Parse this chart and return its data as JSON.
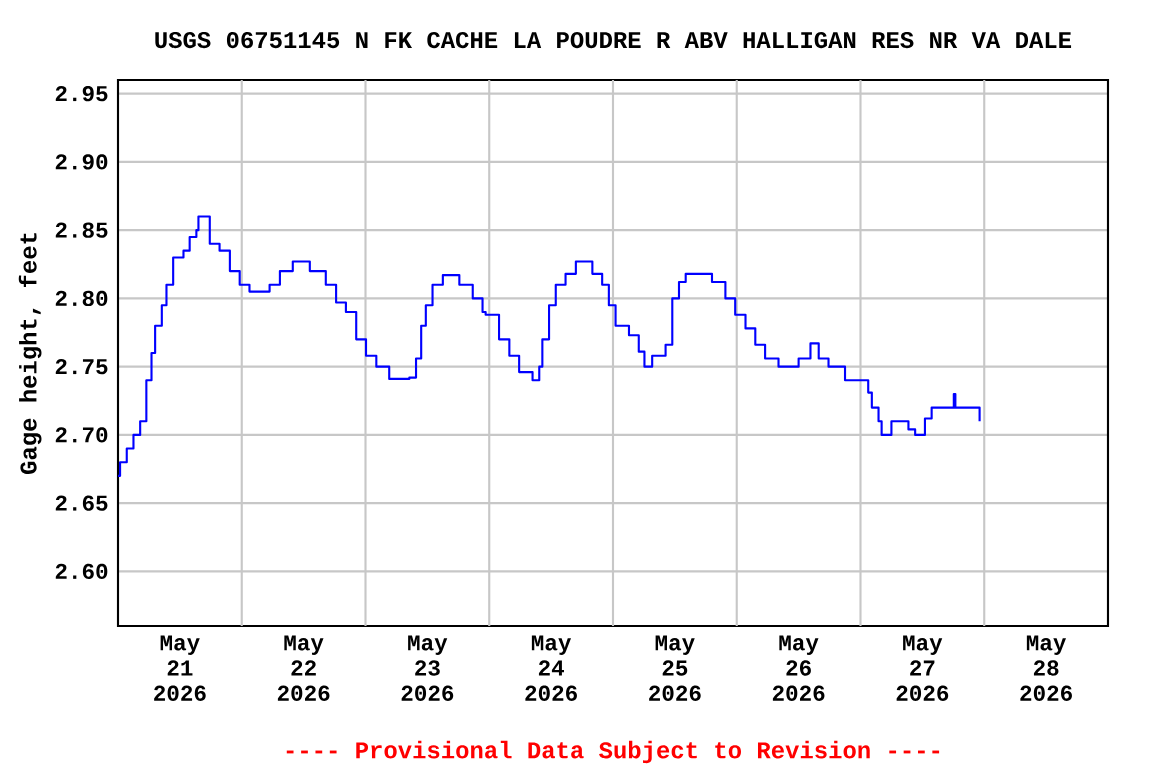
{
  "chart_data": {
    "type": "step",
    "title": "USGS 06751145 N FK CACHE LA POUDRE R ABV HALLIGAN RES NR VA DALE",
    "ylabel": "Gage height, feet",
    "annotations": [
      "---- Provisional Data Subject to Revision ----"
    ],
    "xlim": [
      "2026-05-21T00:00",
      "2026-05-29T00:00"
    ],
    "xticks": [
      {
        "value": "2026-05-21T12:00",
        "label": "May 21 2026"
      },
      {
        "value": "2026-05-22T12:00",
        "label": "May 22 2026"
      },
      {
        "value": "2026-05-23T12:00",
        "label": "May 23 2026"
      },
      {
        "value": "2026-05-24T12:00",
        "label": "May 24 2026"
      },
      {
        "value": "2026-05-25T12:00",
        "label": "May 25 2026"
      },
      {
        "value": "2026-05-26T12:00",
        "label": "May 26 2026"
      },
      {
        "value": "2026-05-27T12:00",
        "label": "May 27 2026"
      },
      {
        "value": "2026-05-28T12:00",
        "label": "May 28 2026"
      },
      {
        "value": "2026-05-22T00:00",
        "label": null
      },
      {
        "value": "2026-05-23T00:00",
        "label": null
      },
      {
        "value": "2026-05-24T00:00",
        "label": null
      },
      {
        "value": "2026-05-25T00:00",
        "label": null
      },
      {
        "value": "2026-05-26T00:00",
        "label": null
      },
      {
        "value": "2026-05-27T00:00",
        "label": null
      },
      {
        "value": "2026-05-28T00:00",
        "label": null
      }
    ],
    "ylim": [
      2.56,
      2.96
    ],
    "yticks": [
      {
        "value": 2.6,
        "label": "2.60"
      },
      {
        "value": 2.65,
        "label": "2.65"
      },
      {
        "value": 2.7,
        "label": "2.70"
      },
      {
        "value": 2.75,
        "label": "2.75"
      },
      {
        "value": 2.8,
        "label": "2.80"
      },
      {
        "value": 2.85,
        "label": "2.85"
      },
      {
        "value": 2.9,
        "label": "2.90"
      },
      {
        "value": 2.95,
        "label": "2.95"
      }
    ],
    "grid": true,
    "color": "#0000ff",
    "x": [
      "2026-05-21T00:00",
      "2026-05-21T00:24",
      "2026-05-21T01:42",
      "2026-05-21T03:00",
      "2026-05-21T04:18",
      "2026-05-21T05:30",
      "2026-05-21T06:30",
      "2026-05-21T07:12",
      "2026-05-21T08:30",
      "2026-05-21T09:24",
      "2026-05-21T10:42",
      "2026-05-21T12:42",
      "2026-05-21T13:54",
      "2026-05-21T15:12",
      "2026-05-21T15:36",
      "2026-05-21T17:48",
      "2026-05-21T19:42",
      "2026-05-21T21:42",
      "2026-05-21T23:36",
      "2026-05-22T01:30",
      "2026-05-22T05:24",
      "2026-05-22T07:24",
      "2026-05-22T09:54",
      "2026-05-22T13:12",
      "2026-05-22T16:18",
      "2026-05-22T18:18",
      "2026-05-22T20:12",
      "2026-05-22T22:12",
      "2026-05-23T00:06",
      "2026-05-23T02:06",
      "2026-05-23T04:36",
      "2026-05-23T08:30",
      "2026-05-23T09:48",
      "2026-05-23T10:48",
      "2026-05-23T11:42",
      "2026-05-23T13:00",
      "2026-05-23T15:00",
      "2026-05-23T18:12",
      "2026-05-23T20:48",
      "2026-05-23T22:42",
      "2026-05-23T23:18",
      "2026-05-24T01:54",
      "2026-05-24T03:54",
      "2026-05-24T05:48",
      "2026-05-24T08:24",
      "2026-05-24T09:42",
      "2026-05-24T10:18",
      "2026-05-24T11:36",
      "2026-05-24T12:54",
      "2026-05-24T14:48",
      "2026-05-24T16:48",
      "2026-05-24T20:00",
      "2026-05-24T21:54",
      "2026-05-24T23:12",
      "2026-05-25T00:30",
      "2026-05-25T03:06",
      "2026-05-25T05:00",
      "2026-05-25T06:06",
      "2026-05-25T07:36",
      "2026-05-25T10:12",
      "2026-05-25T11:30",
      "2026-05-25T12:48",
      "2026-05-25T14:06",
      "2026-05-25T17:18",
      "2026-05-25T19:12",
      "2026-05-25T21:48",
      "2026-05-25T23:42",
      "2026-05-26T01:42",
      "2026-05-26T03:36",
      "2026-05-26T05:30",
      "2026-05-26T08:06",
      "2026-05-26T12:00",
      "2026-05-26T14:18",
      "2026-05-26T15:54",
      "2026-05-26T17:48",
      "2026-05-26T19:42",
      "2026-05-26T21:00",
      "2026-05-26T23:36",
      "2026-05-27T01:30",
      "2026-05-27T02:12",
      "2026-05-27T03:30",
      "2026-05-27T04:06",
      "2026-05-27T06:00",
      "2026-05-27T09:18",
      "2026-05-27T10:36",
      "2026-05-27T12:30",
      "2026-05-27T13:48",
      "2026-05-27T17:42",
      "2026-05-27T18:06",
      "2026-05-27T18:24",
      "2026-05-27T22:36",
      "2026-05-27T23:06"
    ],
    "values": [
      2.67,
      2.68,
      2.69,
      2.7,
      2.71,
      2.74,
      2.76,
      2.78,
      2.795,
      2.81,
      2.83,
      2.835,
      2.845,
      2.85,
      2.86,
      2.84,
      2.835,
      2.82,
      2.81,
      2.805,
      2.81,
      2.82,
      2.827,
      2.82,
      2.81,
      2.797,
      2.79,
      2.77,
      2.758,
      2.75,
      2.741,
      2.742,
      2.756,
      2.78,
      2.795,
      2.81,
      2.817,
      2.81,
      2.8,
      2.79,
      2.788,
      2.77,
      2.758,
      2.746,
      2.74,
      2.75,
      2.77,
      2.795,
      2.81,
      2.818,
      2.827,
      2.818,
      2.81,
      2.795,
      2.78,
      2.773,
      2.761,
      2.75,
      2.758,
      2.766,
      2.8,
      2.812,
      2.818,
      2.818,
      2.812,
      2.8,
      2.788,
      2.778,
      2.766,
      2.756,
      2.75,
      2.756,
      2.767,
      2.756,
      2.75,
      2.75,
      2.74,
      2.74,
      2.731,
      2.72,
      2.71,
      2.7,
      2.71,
      2.704,
      2.7,
      2.712,
      2.72,
      2.72,
      2.73,
      2.72,
      2.72,
      2.71
    ]
  }
}
